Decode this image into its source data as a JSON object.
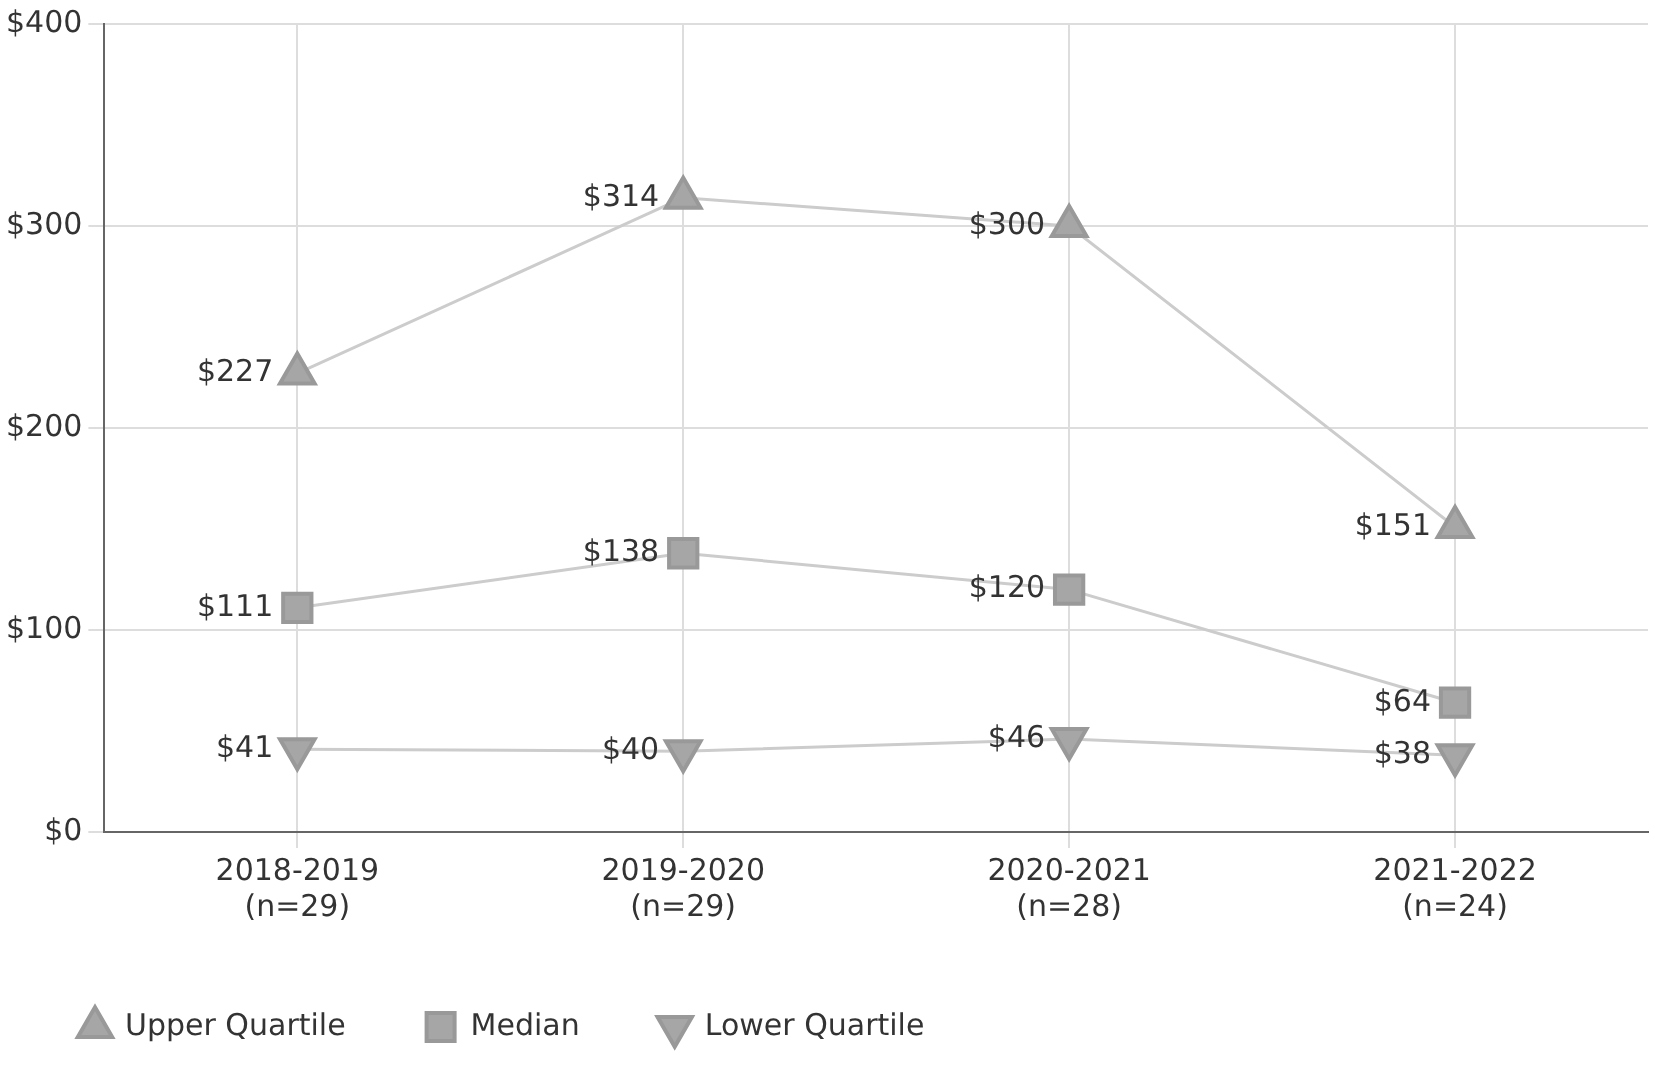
{
  "chart_data": {
    "type": "line",
    "categories": [
      "2018-2019\n(n=29)",
      "2019-2020\n(n=29)",
      "2020-2021\n(n=28)",
      "2021-2022\n(n=24)"
    ],
    "series": [
      {
        "name": "Upper Quartile",
        "color": "#a6a6a6",
        "marker": "triangle",
        "values": [
          227,
          314,
          300,
          151
        ],
        "value_labels": [
          "$227",
          "$314",
          "$300",
          "$151"
        ]
      },
      {
        "name": "Median",
        "color": "#a6a6a6",
        "marker": "square",
        "values": [
          111,
          138,
          120,
          64
        ],
        "value_labels": [
          "$111",
          "$138",
          "$120",
          "$64"
        ]
      },
      {
        "name": "Lower Quartile",
        "color": "#a6a6a6",
        "marker": "triangle-down",
        "values": [
          41,
          40,
          46,
          38
        ],
        "value_labels": [
          "$41",
          "$40",
          "$46",
          "$38"
        ]
      }
    ],
    "ylim": [
      0,
      400
    ],
    "yticks": [
      {
        "value": 0,
        "label": "$0"
      },
      {
        "value": 100,
        "label": "$100"
      },
      {
        "value": 200,
        "label": "$200"
      },
      {
        "value": 300,
        "label": "$300"
      },
      {
        "value": 400,
        "label": "$400"
      }
    ],
    "grid": true,
    "legend": "bottom"
  }
}
